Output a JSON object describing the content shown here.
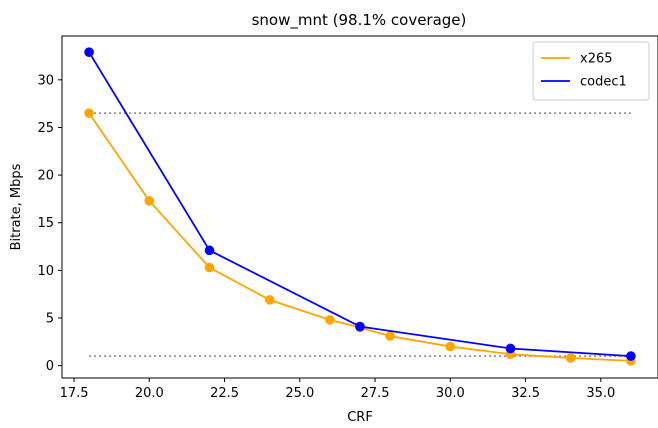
{
  "chart_data": {
    "type": "line",
    "title": "snow_mnt (98.1% coverage)",
    "xlabel": "CRF",
    "ylabel": "Bitrate, Mbps",
    "xlim": [
      17.1,
      36.9
    ],
    "ylim": [
      -1.3,
      34.6
    ],
    "xticks": [
      17.5,
      20.0,
      22.5,
      25.0,
      27.5,
      30.0,
      32.5,
      35.0
    ],
    "xtick_labels": [
      "17.5",
      "20.0",
      "22.5",
      "25.0",
      "27.5",
      "30.0",
      "32.5",
      "35.0"
    ],
    "yticks": [
      0,
      5,
      10,
      15,
      20,
      25,
      30
    ],
    "ytick_labels": [
      "0",
      "5",
      "10",
      "15",
      "20",
      "25",
      "30"
    ],
    "grid": false,
    "legend_position": "top-right",
    "series": [
      {
        "name": "x265",
        "color": "#FFA500",
        "x": [
          18,
          20,
          22,
          24,
          26,
          27,
          28,
          30,
          32,
          34,
          36
        ],
        "y": [
          26.5,
          17.3,
          10.3,
          6.9,
          4.8,
          4.0,
          3.1,
          2.0,
          1.2,
          0.8,
          0.5
        ]
      },
      {
        "name": "codec1",
        "color": "#0000FF",
        "x": [
          18,
          22,
          27,
          32,
          36
        ],
        "y": [
          32.9,
          12.1,
          4.1,
          1.8,
          1.0
        ]
      }
    ],
    "reference_lines": [
      {
        "y": 26.5,
        "x_range": [
          18,
          36
        ],
        "style": "dotted",
        "color": "#808080"
      },
      {
        "y": 1.0,
        "x_range": [
          18,
          36
        ],
        "style": "dotted",
        "color": "#808080"
      }
    ]
  }
}
